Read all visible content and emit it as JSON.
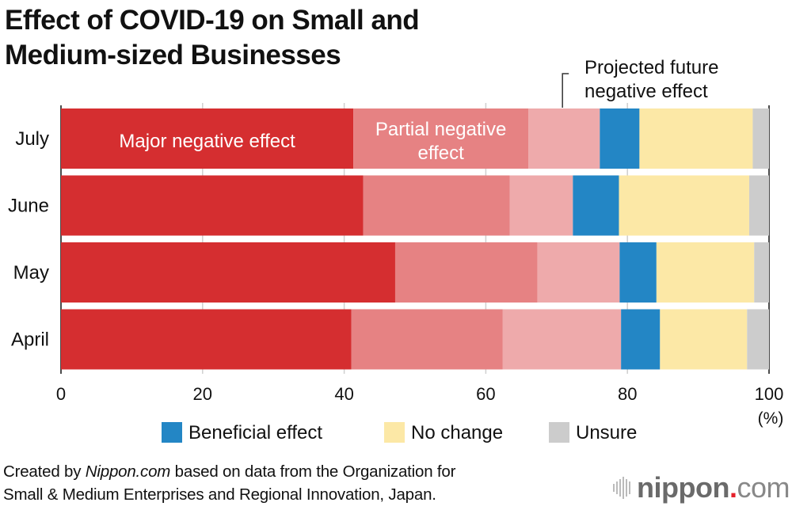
{
  "title_lines": [
    "Effect of COVID-19 on Small and",
    "Medium-sized Businesses"
  ],
  "chart_data": {
    "type": "bar",
    "orientation": "horizontal",
    "stacked": true,
    "title": "Effect of COVID-19 on Small and Medium-sized Businesses",
    "xlabel": "(%)",
    "ylabel": "",
    "xlim": [
      0,
      100
    ],
    "xticks": [
      "0",
      "20",
      "40",
      "60",
      "80",
      "100"
    ],
    "grid": true,
    "categories": [
      "July",
      "June",
      "May",
      "April"
    ],
    "series": [
      {
        "name": "Major negative effect",
        "color": "#d52e30",
        "values": [
          41.3,
          42.7,
          47.2,
          41.0
        ]
      },
      {
        "name": "Partial negative effect",
        "color": "#e68283",
        "values": [
          24.7,
          20.7,
          20.1,
          21.4
        ]
      },
      {
        "name": "Projected future negative effect",
        "color": "#eeaaab",
        "values": [
          10.1,
          8.9,
          11.6,
          16.7
        ]
      },
      {
        "name": "Beneficial effect",
        "color": "#2386c5",
        "values": [
          5.6,
          6.5,
          5.2,
          5.5
        ]
      },
      {
        "name": "No change",
        "color": "#fce8a6",
        "values": [
          16.0,
          18.4,
          13.8,
          12.3
        ]
      },
      {
        "name": "Unsure",
        "color": "#cccccc",
        "values": [
          2.3,
          2.8,
          2.1,
          3.1
        ]
      }
    ],
    "annotations": {
      "major": "Major negative effect",
      "partial_lines": [
        "Partial negative",
        "effect"
      ],
      "projected_lines": [
        "Projected future",
        "negative effect"
      ]
    },
    "legend": {
      "placement": "bottom",
      "items": [
        "Beneficial effect",
        "No change",
        "Unsure"
      ]
    },
    "unit_label": "(%)"
  },
  "footer": {
    "line1_prefix": "Created by ",
    "line1_brand": "Nippon.com",
    "line1_suffix": " based on data from the Organization for",
    "line2": "Small & Medium Enterprises and Regional Innovation, Japan."
  },
  "logo": {
    "word": "nippon",
    "dot": ".",
    "com": "com"
  }
}
